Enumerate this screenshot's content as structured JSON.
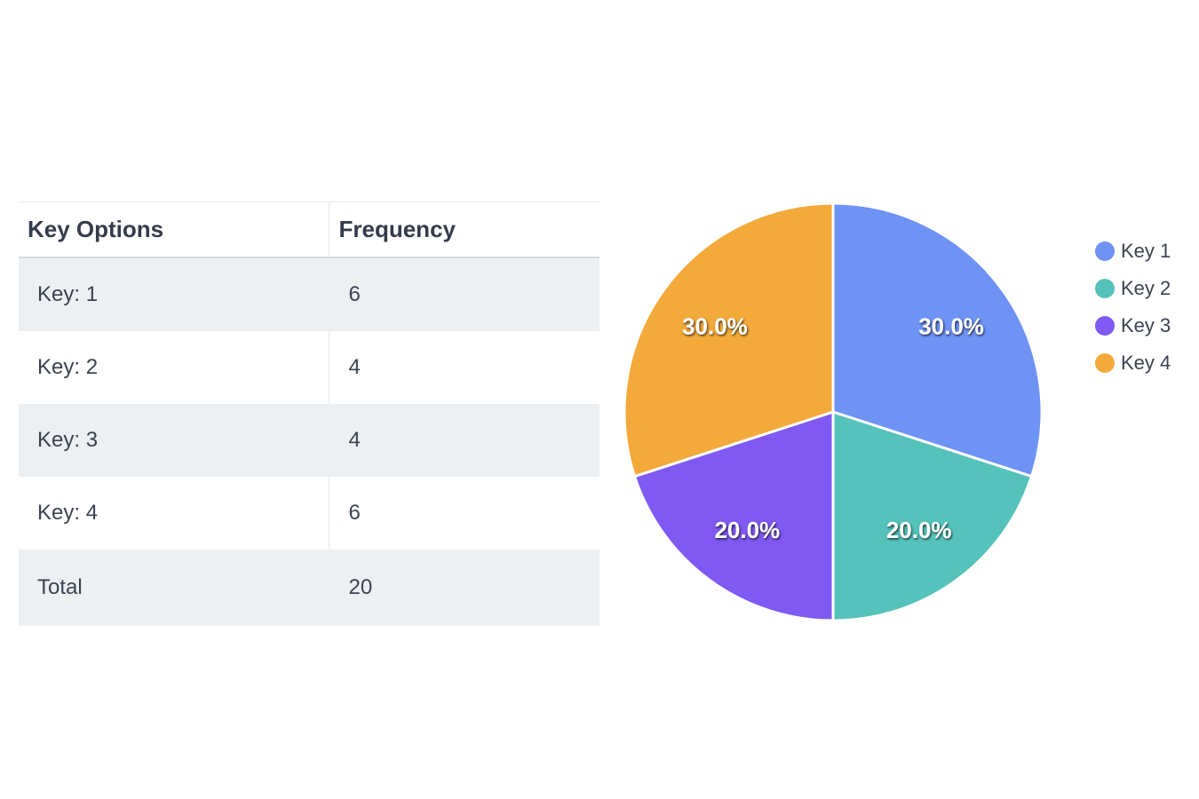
{
  "table": {
    "headers": {
      "key": "Key Options",
      "frequency": "Frequency"
    },
    "rows": [
      {
        "key": "Key: 1",
        "frequency": "6"
      },
      {
        "key": "Key: 2",
        "frequency": "4"
      },
      {
        "key": "Key: 3",
        "frequency": "4"
      },
      {
        "key": "Key: 4",
        "frequency": "6"
      }
    ],
    "total": {
      "label": "Total",
      "frequency": "20"
    }
  },
  "chart_data": {
    "type": "pie",
    "title": "",
    "legend_position": "right",
    "slices": [
      {
        "label": "Key 1",
        "value": 6,
        "percent_label": "30.0%",
        "color": "#6e93f5"
      },
      {
        "label": "Key 2",
        "value": 4,
        "percent_label": "20.0%",
        "color": "#55c2bb"
      },
      {
        "label": "Key 3",
        "value": 4,
        "percent_label": "20.0%",
        "color": "#8059f2"
      },
      {
        "label": "Key 4",
        "value": 6,
        "percent_label": "30.0%",
        "color": "#f3aa3a"
      }
    ]
  }
}
